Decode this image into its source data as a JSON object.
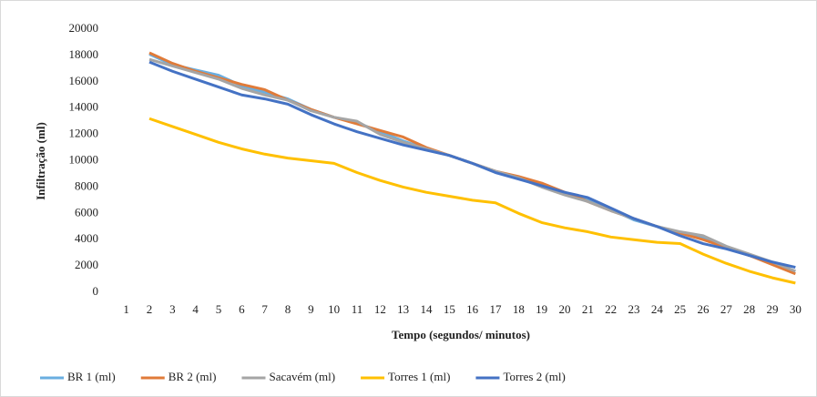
{
  "chart_data": {
    "type": "line",
    "x_label": "Tempo  (segundos/ minutos)",
    "y_label": "Infiltração (ml)",
    "categories": [
      1,
      2,
      3,
      4,
      5,
      6,
      7,
      8,
      9,
      10,
      11,
      12,
      13,
      14,
      15,
      16,
      17,
      18,
      19,
      20,
      21,
      22,
      23,
      24,
      25,
      26,
      27,
      28,
      29,
      30
    ],
    "ylim": [
      0,
      20000
    ],
    "yticks": [
      0,
      2000,
      4000,
      6000,
      8000,
      10000,
      12000,
      14000,
      16000,
      18000,
      20000
    ],
    "grid": false,
    "legend": "bottom",
    "series": [
      {
        "name": "BR 1 (ml)",
        "color": "#6aaee0",
        "values": [
          null,
          18100,
          17300,
          16900,
          16500,
          15700,
          15200,
          14700,
          13900,
          13300,
          12900,
          12200,
          11500,
          10900,
          10400,
          9800,
          9200,
          8700,
          8100,
          7500,
          7000,
          6300,
          5500,
          5000,
          4500,
          4100,
          3400,
          2800,
          2200,
          1600
        ]
      },
      {
        "name": "BR 2 (ml)",
        "color": "#e07b39",
        "values": [
          null,
          18200,
          17400,
          16800,
          16300,
          15800,
          15400,
          14600,
          13900,
          13300,
          12800,
          12300,
          11800,
          11000,
          10400,
          9800,
          9200,
          8800,
          8300,
          7600,
          6900,
          6200,
          5600,
          5000,
          4500,
          4000,
          3400,
          2800,
          2100,
          1400
        ]
      },
      {
        "name": "Sacavém (ml)",
        "color": "#a5a5a5",
        "values": [
          null,
          17700,
          17200,
          16700,
          16200,
          15500,
          15000,
          14600,
          13800,
          13300,
          13000,
          12000,
          11400,
          10900,
          10400,
          9800,
          9200,
          8700,
          8000,
          7400,
          6900,
          6200,
          5600,
          5000,
          4600,
          4300,
          3500,
          2900,
          2300,
          1600
        ]
      },
      {
        "name": "Torres 1 (ml)",
        "color": "#ffc000",
        "values": [
          null,
          13200,
          12600,
          12000,
          11400,
          10900,
          10500,
          10200,
          10000,
          9800,
          9100,
          8500,
          8000,
          7600,
          7300,
          7000,
          6800,
          6000,
          5300,
          4900,
          4600,
          4200,
          4000,
          3800,
          3700,
          2900,
          2200,
          1600,
          1100,
          700
        ]
      },
      {
        "name": "Torres 2 (ml)",
        "color": "#4472c4",
        "values": [
          null,
          17500,
          16800,
          16200,
          15600,
          15000,
          14700,
          14300,
          13500,
          12800,
          12200,
          11700,
          11200,
          10800,
          10400,
          9800,
          9100,
          8600,
          8100,
          7600,
          7200,
          6400,
          5600,
          5000,
          4300,
          3700,
          3300,
          2800,
          2300,
          1900
        ]
      }
    ]
  }
}
